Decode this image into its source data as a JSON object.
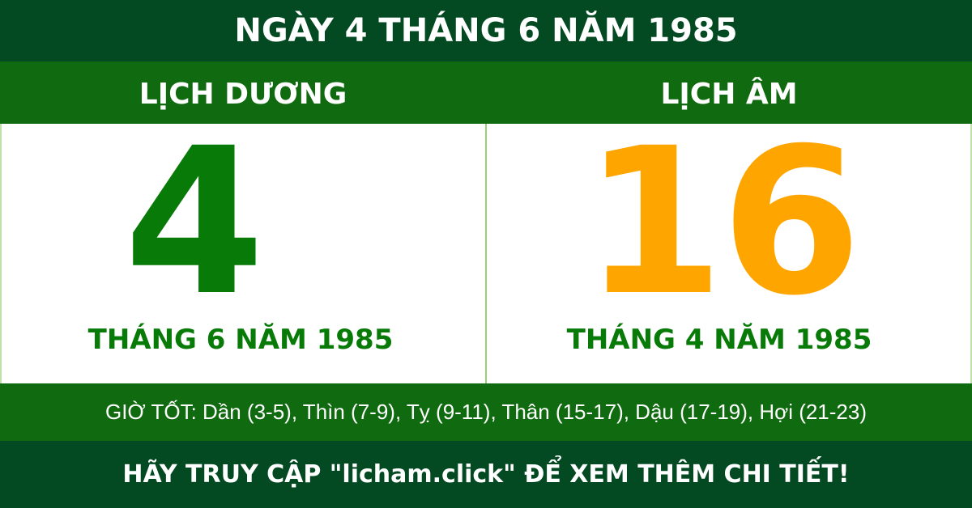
{
  "title": "NGÀY 4 THÁNG 6 NĂM 1985",
  "solar": {
    "heading": "LỊCH DƯƠNG",
    "day": "4",
    "month_year": "THÁNG 6 NĂM 1985"
  },
  "lunar": {
    "heading": "LỊCH ÂM",
    "day": "16",
    "month_year": "THÁNG 4 NĂM 1985"
  },
  "good_hours": "GIỜ TỐT: Dần (3-5), Thìn (7-9), Tỵ (9-11), Thân (15-17), Dậu (17-19), Hợi (21-23)",
  "footer": "HÃY TRUY CẬP \"licham.click\" ĐỂ XEM THÊM CHI TIẾT!",
  "colors": {
    "dark_green": "#034a22",
    "green": "#106b10",
    "solar_day": "#077a07",
    "lunar_day": "#ffa500"
  }
}
